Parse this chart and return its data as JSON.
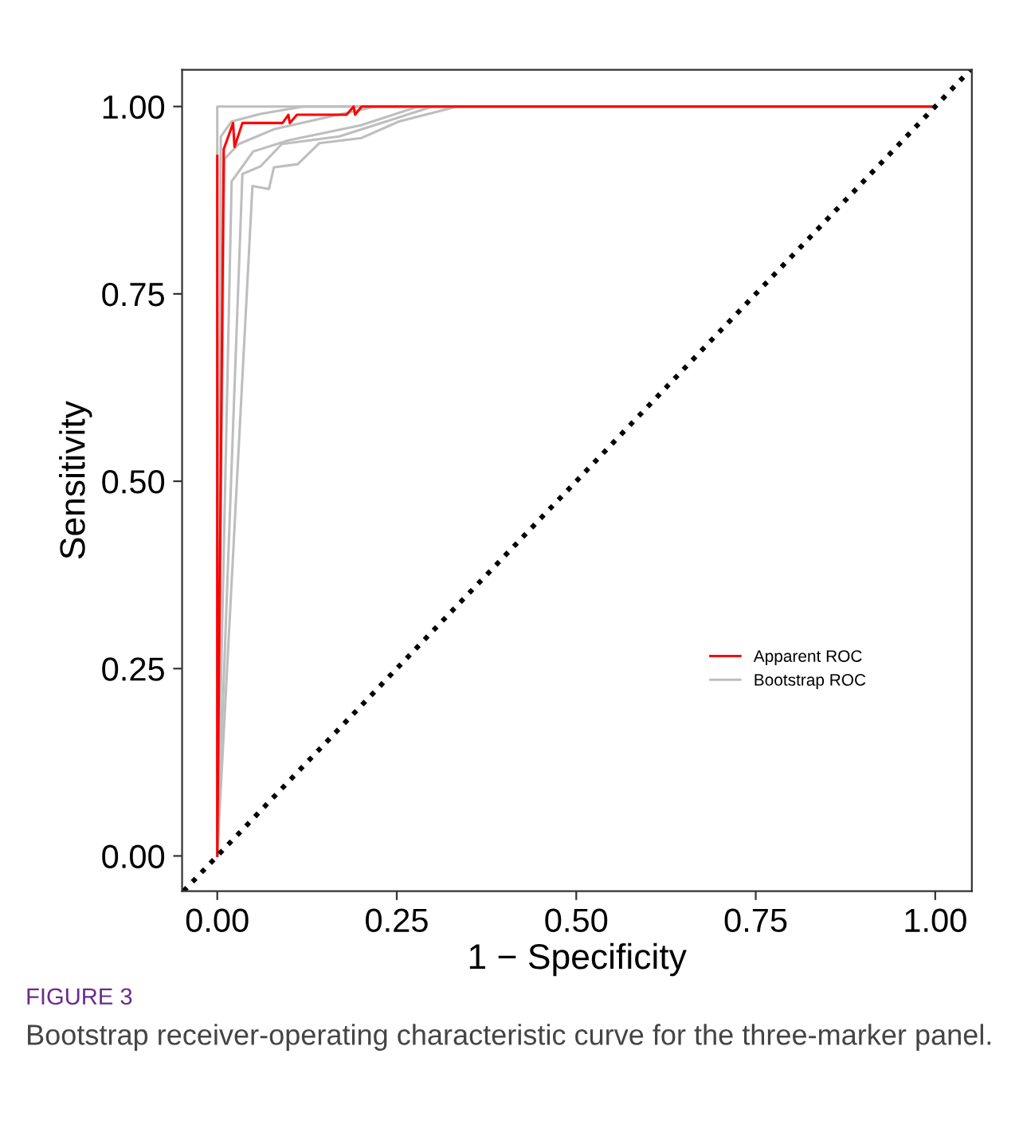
{
  "chart_data": {
    "type": "line",
    "xlabel": "1 − Specificity",
    "ylabel": "Sensitivity",
    "xlim": [
      -0.049,
      1.051
    ],
    "ylim": [
      -0.047,
      1.049
    ],
    "xticks": [
      {
        "value": 0,
        "label": "0.00"
      },
      {
        "value": 0.25,
        "label": "0.25"
      },
      {
        "value": 0.5,
        "label": "0.50"
      },
      {
        "value": 0.75,
        "label": "0.75"
      },
      {
        "value": 1,
        "label": "1.00"
      }
    ],
    "yticks": [
      {
        "value": 0,
        "label": "0.00"
      },
      {
        "value": 0.25,
        "label": "0.25"
      },
      {
        "value": 0.5,
        "label": "0.50"
      },
      {
        "value": 0.75,
        "label": "0.75"
      },
      {
        "value": 1,
        "label": "1.00"
      }
    ],
    "grid": false,
    "legend": "right",
    "series": [
      {
        "name": "Bootstrap ROC",
        "color": "#bebebe",
        "x": [
          0,
          0.049,
          0.072,
          0.079,
          0.112,
          0.142,
          0.201,
          0.253,
          0.334,
          1
        ],
        "values": [
          0,
          0.894,
          0.89,
          0.919,
          0.923,
          0.951,
          0.958,
          0.98,
          1,
          1
        ]
      },
      {
        "color": "#bebebe",
        "x": [
          0,
          0,
          1
        ],
        "values": [
          0,
          1,
          1
        ]
      },
      {
        "color": "#bebebe",
        "x": [
          0,
          0.01,
          0.03,
          0.08,
          0.15,
          0.22,
          1
        ],
        "values": [
          0,
          0.93,
          0.95,
          0.97,
          0.985,
          1,
          1
        ]
      },
      {
        "color": "#bebebe",
        "x": [
          0,
          0.02,
          0.05,
          0.1,
          0.2,
          0.28,
          1
        ],
        "values": [
          0,
          0.9,
          0.94,
          0.955,
          0.975,
          1,
          1
        ]
      },
      {
        "color": "#bebebe",
        "x": [
          0,
          0.005,
          0.02,
          0.06,
          0.12,
          1
        ],
        "values": [
          0,
          0.96,
          0.98,
          0.99,
          1,
          1
        ]
      },
      {
        "color": "#bebebe",
        "x": [
          0,
          0.035,
          0.06,
          0.09,
          0.17,
          0.3,
          1
        ],
        "values": [
          0,
          0.91,
          0.92,
          0.95,
          0.96,
          1,
          1
        ]
      },
      {
        "name": "Apparent ROC",
        "color": "#ff0000",
        "x": [
          0,
          0,
          0.009,
          0.022,
          0.024,
          0.035,
          0.091,
          0.099,
          0.101,
          0.111,
          0.18,
          0.19,
          0.192,
          0.201,
          1
        ],
        "values": [
          0.934,
          0,
          0.943,
          0.978,
          0.946,
          0.978,
          0.978,
          0.989,
          0.978,
          0.989,
          0.989,
          1,
          0.989,
          1,
          1
        ]
      },
      {
        "color": "#000000",
        "line_style": "dotted",
        "x": [
          -0.047,
          1.049
        ],
        "values": [
          -0.047,
          1.049
        ]
      }
    ],
    "annotations": [
      "FIGURE 3",
      "Bootstrap receiver-operating characteristic curve for the three-marker panel."
    ]
  }
}
